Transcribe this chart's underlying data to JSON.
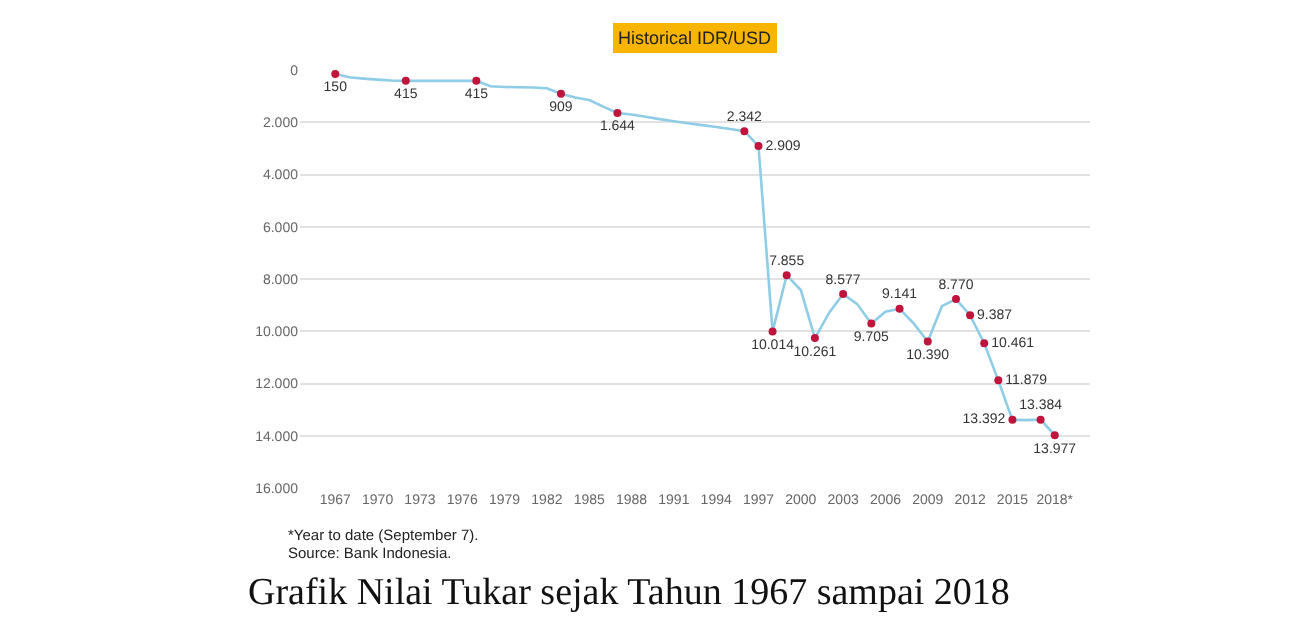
{
  "chart_data": {
    "type": "line",
    "title": "Historical IDR/USD",
    "x": [
      1967,
      1968,
      1969,
      1970,
      1971,
      1972,
      1973,
      1974,
      1975,
      1976,
      1977,
      1978,
      1979,
      1980,
      1981,
      1982,
      1983,
      1984,
      1985,
      1986,
      1987,
      1988,
      1989,
      1990,
      1991,
      1992,
      1993,
      1994,
      1995,
      1996,
      1997,
      1998,
      1999,
      2000,
      2001,
      2002,
      2003,
      2004,
      2005,
      2006,
      2007,
      2008,
      2009,
      2010,
      2011,
      2012,
      2013,
      2014,
      2015,
      2016,
      2017,
      2018
    ],
    "series": [
      {
        "color": "#8fcde6",
        "marker": "none",
        "values": [
          150,
          280,
          330,
          370,
          400,
          415,
          415,
          415,
          415,
          415,
          415,
          625,
          650,
          660,
          670,
          700,
          909,
          1050,
          1150,
          1400,
          1644,
          1700,
          1790,
          1880,
          1960,
          2040,
          2110,
          2180,
          2260,
          2342,
          2909,
          10014,
          7855,
          8420,
          10261,
          9300,
          8577,
          8960,
          9705,
          9250,
          9141,
          9700,
          10390,
          9040,
          8770,
          9387,
          10461,
          11879,
          13392,
          13400,
          13384,
          13977
        ]
      },
      {
        "type": "scatter",
        "color": "#c0143c",
        "marker": "circle",
        "x": [
          1967,
          1972,
          1977,
          1983,
          1987,
          1996,
          1997,
          1998,
          1999,
          2001,
          2003,
          2005,
          2007,
          2009,
          2011,
          2012,
          2013,
          2014,
          2015,
          2017,
          2018
        ],
        "values": [
          150,
          415,
          415,
          909,
          1644,
          2342,
          2909,
          10014,
          7855,
          10261,
          8577,
          9705,
          9141,
          10390,
          8770,
          9387,
          10461,
          11879,
          13392,
          13384,
          13977
        ],
        "value_labels": [
          "150",
          "415",
          "415",
          "909",
          "1.644",
          "2.342",
          "2.909",
          "10.014",
          "7.855",
          "10.261",
          "8.577",
          "9.705",
          "9.141",
          "10.390",
          "8.770",
          "9.387",
          "10.461",
          "11.879",
          "13.392",
          "13.384",
          "13.977"
        ]
      }
    ],
    "xlim": [
      1964.5,
      2020.5
    ],
    "xticks": [
      1967,
      1970,
      1973,
      1976,
      1979,
      1982,
      1985,
      1988,
      1991,
      1994,
      1997,
      2000,
      2003,
      2006,
      2009,
      2012,
      2015,
      {
        "value": 2018,
        "label": "2018*"
      }
    ],
    "ylim": [
      16000,
      0
    ],
    "yticks": [
      0,
      {
        "value": 2000,
        "label": "2.000"
      },
      {
        "value": 4000,
        "label": "4.000"
      },
      {
        "value": 6000,
        "label": "6.000"
      },
      {
        "value": 8000,
        "label": "8.000"
      },
      {
        "value": 10000,
        "label": "10.000"
      },
      {
        "value": 12000,
        "label": "12.000"
      },
      {
        "value": 14000,
        "label": "14.000"
      },
      {
        "value": 16000,
        "label": "16.000"
      }
    ],
    "grid": "y",
    "annotations": [
      "*Year to date (September 7).",
      "Source: Bank Indonesia.",
      "Grafik Nilai Tukar sejak Tahun 1967 sampai 2018"
    ]
  }
}
